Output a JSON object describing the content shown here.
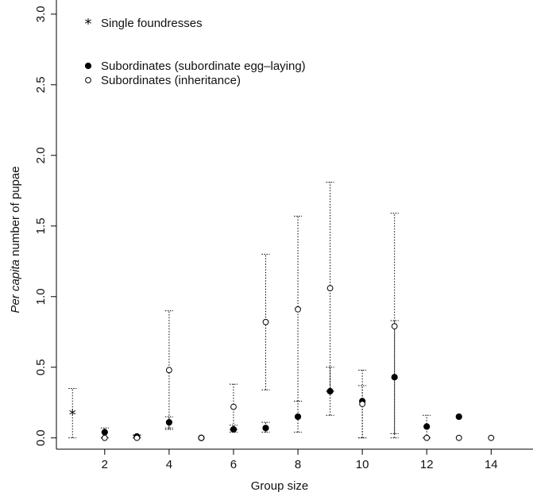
{
  "chart_data": {
    "type": "scatter",
    "xlabel": "Group size",
    "ylabel_italic": "Per capita",
    "ylabel_rest": " number of pupae",
    "xlim": [
      0.5,
      15.3
    ],
    "ylim": [
      -0.08,
      3.1
    ],
    "x_ticks": [
      2,
      4,
      6,
      8,
      10,
      12,
      14
    ],
    "y_ticks": [
      0.0,
      0.5,
      1.0,
      1.5,
      2.0,
      2.5,
      3.0
    ],
    "y_tick_labels": [
      "0.0",
      "0.5",
      "1.0",
      "1.5",
      "2.0",
      "2.5",
      "3.0"
    ],
    "legend_position": "top-left",
    "series": [
      {
        "name": "Single foundresses",
        "marker": "star",
        "points": [
          {
            "x": 1,
            "y": 0.17,
            "lo": 0.0,
            "hi": 0.35
          }
        ]
      },
      {
        "name": "Subordinates (subordinate egg–laying)",
        "marker": "filled-circle",
        "points": [
          {
            "x": 2,
            "y": 0.04,
            "lo": 0.0,
            "hi": 0.07
          },
          {
            "x": 3,
            "y": 0.01,
            "lo": 0.0,
            "hi": 0.02
          },
          {
            "x": 4,
            "y": 0.11,
            "lo": 0.07,
            "hi": 0.15
          },
          {
            "x": 5,
            "y": 0.0,
            "lo": 0.0,
            "hi": 0.0
          },
          {
            "x": 6,
            "y": 0.06,
            "lo": 0.04,
            "hi": 0.09
          },
          {
            "x": 7,
            "y": 0.07,
            "lo": 0.04,
            "hi": 0.11
          },
          {
            "x": 8,
            "y": 0.15,
            "lo": 0.04,
            "hi": 0.26
          },
          {
            "x": 9,
            "y": 0.33,
            "lo": 0.16,
            "hi": 0.5
          },
          {
            "x": 10,
            "y": 0.26,
            "lo": 0.0,
            "hi": 0.37
          },
          {
            "x": 11,
            "y": 0.43,
            "lo": 0.03,
            "hi": 0.83
          },
          {
            "x": 12,
            "y": 0.08,
            "lo": 0.0,
            "hi": 0.16
          },
          {
            "x": 13,
            "y": 0.15,
            "lo": 0.15,
            "hi": 0.15
          }
        ]
      },
      {
        "name": "Subordinates (inheritance)",
        "marker": "open-circle",
        "points": [
          {
            "x": 2,
            "y": 0.0,
            "lo": 0.0,
            "hi": 0.0
          },
          {
            "x": 3,
            "y": 0.0,
            "lo": 0.0,
            "hi": 0.02
          },
          {
            "x": 4,
            "y": 0.48,
            "lo": 0.06,
            "hi": 0.9
          },
          {
            "x": 5,
            "y": 0.0,
            "lo": 0.0,
            "hi": 0.0
          },
          {
            "x": 6,
            "y": 0.22,
            "lo": 0.06,
            "hi": 0.38
          },
          {
            "x": 7,
            "y": 0.82,
            "lo": 0.34,
            "hi": 1.3
          },
          {
            "x": 8,
            "y": 0.91,
            "lo": 0.26,
            "hi": 1.57
          },
          {
            "x": 9,
            "y": 1.06,
            "lo": 0.33,
            "hi": 1.81
          },
          {
            "x": 10,
            "y": 0.24,
            "lo": 0.0,
            "hi": 0.48
          },
          {
            "x": 11,
            "y": 0.79,
            "lo": 0.0,
            "hi": 1.59
          },
          {
            "x": 12,
            "y": 0.0,
            "lo": 0.0,
            "hi": 0.0
          },
          {
            "x": 13,
            "y": 0.0,
            "lo": 0.0,
            "hi": 0.0
          },
          {
            "x": 14,
            "y": 0.0,
            "lo": 0.0,
            "hi": 0.0
          }
        ]
      }
    ]
  }
}
